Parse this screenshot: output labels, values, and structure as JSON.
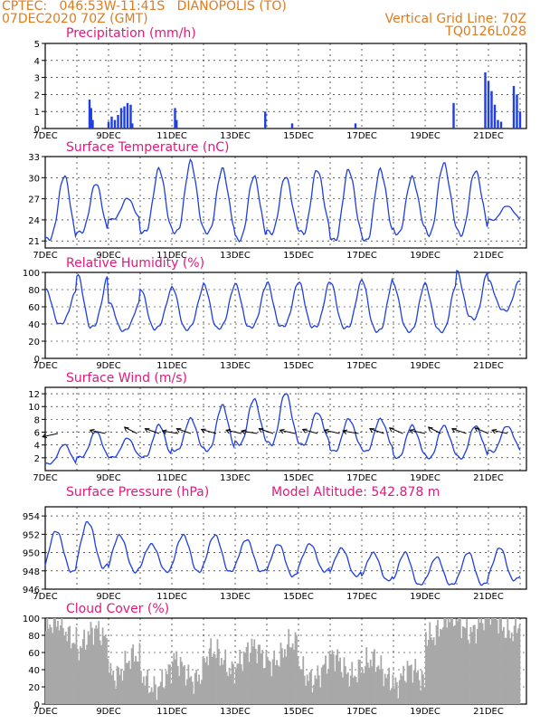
{
  "header": {
    "line1": "CPTEC:   046:53W-11:41S   DIANOPOLIS (TO)",
    "line2": "07DEC2020 70Z (GMT)",
    "right1": "Vertical Grid Line: 70Z",
    "right2": "TQ0126L028"
  },
  "colors": {
    "line": "#1f3fe0",
    "bar": "#1f3fe0",
    "cloud": "#a8a8a8",
    "title": "#e0197d",
    "header": "#e07b1d"
  },
  "x_labels": [
    "7DEC",
    "9DEC",
    "11DEC",
    "13DEC",
    "15DEC",
    "17DEC",
    "19DEC",
    "21DEC"
  ],
  "chart_data": [
    {
      "id": "precip",
      "type": "bar",
      "title": "Precipitation (mm/h)",
      "ylim": [
        0,
        5
      ],
      "yticks": [
        0,
        1,
        2,
        3,
        4,
        5
      ],
      "x_days": [
        1.4,
        1.45,
        1.5,
        2.0,
        2.1,
        2.2,
        2.3,
        2.4,
        2.5,
        2.6,
        2.7,
        2.75,
        4.1,
        4.15,
        6.95,
        7.8,
        9.8,
        12.9,
        13.9,
        14.0,
        14.1,
        14.2,
        14.3,
        14.4,
        14.8,
        14.9,
        15.0
      ],
      "values": [
        1.7,
        1.2,
        0.5,
        0.4,
        0.7,
        0.5,
        0.8,
        1.2,
        1.3,
        1.5,
        1.4,
        0.3,
        1.2,
        0.5,
        1.0,
        0.3,
        0.3,
        1.5,
        3.3,
        2.8,
        2.2,
        1.4,
        0.5,
        0.4,
        2.5,
        2.0,
        1.0
      ]
    },
    {
      "id": "temp",
      "type": "line",
      "title": "Surface Temperature (nC)",
      "ylim": [
        20,
        33
      ],
      "yticks": [
        21,
        24,
        27,
        30,
        33
      ],
      "day_max": [
        30,
        29,
        27,
        31,
        32,
        31,
        30,
        30,
        31,
        31,
        31,
        30,
        32,
        31,
        26
      ],
      "day_min": [
        21,
        22,
        24,
        22,
        22,
        22,
        21,
        22,
        22,
        21,
        21,
        22,
        22,
        22,
        24
      ]
    },
    {
      "id": "rh",
      "type": "line",
      "title": "Relative Humidity (%)",
      "ylim": [
        0,
        100
      ],
      "yticks": [
        0,
        20,
        40,
        60,
        80,
        100
      ],
      "day_max": [
        80,
        97,
        65,
        80,
        82,
        85,
        85,
        87,
        88,
        88,
        90,
        85,
        85,
        100,
        90
      ],
      "day_min": [
        40,
        36,
        32,
        34,
        33,
        34,
        35,
        36,
        35,
        34,
        30,
        30,
        30,
        45,
        55
      ]
    },
    {
      "id": "wind",
      "type": "line",
      "title": "Surface Wind (m/s)",
      "ylim": [
        0,
        13
      ],
      "yticks": [
        2,
        4,
        6,
        8,
        10,
        12
      ],
      "day_max": [
        4,
        6,
        5,
        7,
        8,
        10,
        11,
        12,
        9,
        8,
        8,
        7,
        7,
        7,
        7
      ],
      "day_min": [
        1,
        2,
        2,
        2,
        3,
        3,
        4,
        4,
        4,
        3,
        3,
        2,
        2,
        2,
        3
      ],
      "arrow_days": [
        0.4,
        1.9,
        2.9,
        3.6,
        4.2,
        4.6,
        5.4,
        6.2,
        6.7,
        7.2,
        7.9,
        8.6,
        9.3,
        9.9,
        10.7,
        11.3,
        12.0,
        12.5,
        13.3,
        14.0,
        14.6
      ],
      "arrow_dir_deg": [
        160,
        200,
        220,
        210,
        195,
        210,
        205,
        200,
        195,
        210,
        200,
        205,
        200,
        195,
        210,
        215,
        200,
        220,
        210,
        215,
        200
      ]
    },
    {
      "id": "press",
      "type": "line",
      "title": "Surface Pressure (hPa)",
      "annotation": "Model Altitude: 542.878  m",
      "ylim": [
        946,
        955
      ],
      "yticks": [
        946,
        948,
        950,
        952,
        954
      ],
      "day_max": [
        952.5,
        953.5,
        952,
        951,
        952,
        952,
        951.5,
        951,
        951,
        950.5,
        950,
        950,
        949.5,
        950,
        950.5
      ],
      "day_min": [
        948,
        948.5,
        948,
        948,
        948,
        948,
        948,
        947.5,
        948,
        947.5,
        947,
        946.5,
        946.5,
        946.5,
        947
      ]
    },
    {
      "id": "cloud",
      "type": "bar",
      "title": "Cloud Cover (%)",
      "ylim": [
        0,
        100
      ],
      "yticks": [
        0,
        20,
        40,
        60,
        80,
        100
      ],
      "day_means": [
        85,
        75,
        45,
        30,
        40,
        50,
        55,
        60,
        40,
        45,
        40,
        30,
        90,
        95,
        95
      ]
    }
  ]
}
